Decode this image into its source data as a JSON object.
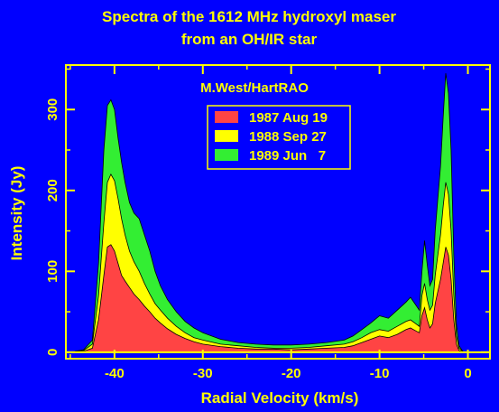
{
  "colors": {
    "background": "#0000ff",
    "foreground": "#ffff00",
    "series_red": "#ff4444",
    "series_yellow": "#ffff00",
    "series_green": "#33ee33",
    "outline": "#000000"
  },
  "chart_data": {
    "type": "area",
    "title": "Spectra of the 1612 MHz hydroxyl maser",
    "subtitle": "from an OH/IR star",
    "annotation": "M.West/HartRAO",
    "xlabel": "Radial Velocity (km/s)",
    "ylabel": "Intensity (Jy)",
    "xlim": [
      -45.5,
      2.5
    ],
    "ylim": [
      -8,
      355
    ],
    "xticks": [
      -40,
      -30,
      -20,
      -10,
      0
    ],
    "yticks": [
      0,
      100,
      200,
      300
    ],
    "grid": false,
    "legend_position": "top-center",
    "legend": [
      "1987 Aug 19",
      "1988 Sep 27",
      "1989 Jun   7"
    ],
    "x": [
      -45,
      -43.5,
      -42.5,
      -41.8,
      -41.2,
      -40.8,
      -40.4,
      -40,
      -39.6,
      -39.2,
      -38.8,
      -38.3,
      -37.8,
      -37.2,
      -36.6,
      -36,
      -35.4,
      -34.8,
      -34,
      -33,
      -32,
      -31,
      -30,
      -28,
      -26,
      -24,
      -22,
      -20,
      -18,
      -16,
      -14,
      -13,
      -12,
      -11,
      -10,
      -9,
      -8,
      -7,
      -6.5,
      -6,
      -5.5,
      -5.2,
      -4.9,
      -4.6,
      -4.3,
      -4,
      -3.7,
      -3.4,
      -3.1,
      -2.8,
      -2.5,
      -2.2,
      -1.9,
      -1.6,
      -1.3,
      -1,
      -0.5,
      0,
      0.5,
      2
    ],
    "series": [
      {
        "name": "1987 Aug 19",
        "color": "#ff4444",
        "values": [
          0,
          1,
          5,
          40,
          95,
          130,
          133,
          125,
          110,
          95,
          88,
          80,
          72,
          65,
          57,
          50,
          42,
          36,
          29,
          22,
          17,
          13,
          10,
          7,
          5,
          4,
          4,
          3,
          4,
          5,
          6,
          8,
          12,
          16,
          20,
          18,
          22,
          28,
          30,
          27,
          24,
          45,
          55,
          40,
          30,
          35,
          60,
          75,
          90,
          110,
          130,
          120,
          90,
          40,
          10,
          2,
          0,
          0,
          0,
          0
        ]
      },
      {
        "name": "1988 Sep 27",
        "color": "#ffff00",
        "values": [
          0,
          2,
          10,
          70,
          160,
          210,
          220,
          212,
          190,
          165,
          145,
          125,
          112,
          100,
          85,
          72,
          60,
          52,
          42,
          32,
          24,
          18,
          15,
          10,
          8,
          6,
          5,
          5,
          6,
          8,
          10,
          13,
          18,
          24,
          28,
          26,
          32,
          38,
          40,
          36,
          32,
          70,
          85,
          65,
          52,
          58,
          95,
          120,
          145,
          180,
          210,
          195,
          150,
          70,
          20,
          5,
          0,
          0,
          0,
          0
        ]
      },
      {
        "name": "1989 Jun 7",
        "color": "#33ee33",
        "values": [
          0,
          3,
          15,
          110,
          250,
          305,
          312,
          300,
          265,
          235,
          210,
          185,
          172,
          165,
          145,
          125,
          100,
          82,
          65,
          50,
          38,
          30,
          24,
          16,
          12,
          10,
          9,
          9,
          10,
          12,
          15,
          20,
          28,
          36,
          45,
          42,
          52,
          62,
          68,
          60,
          52,
          100,
          138,
          108,
          82,
          90,
          150,
          190,
          230,
          290,
          345,
          320,
          250,
          120,
          35,
          8,
          0,
          0,
          0,
          0
        ]
      }
    ]
  }
}
